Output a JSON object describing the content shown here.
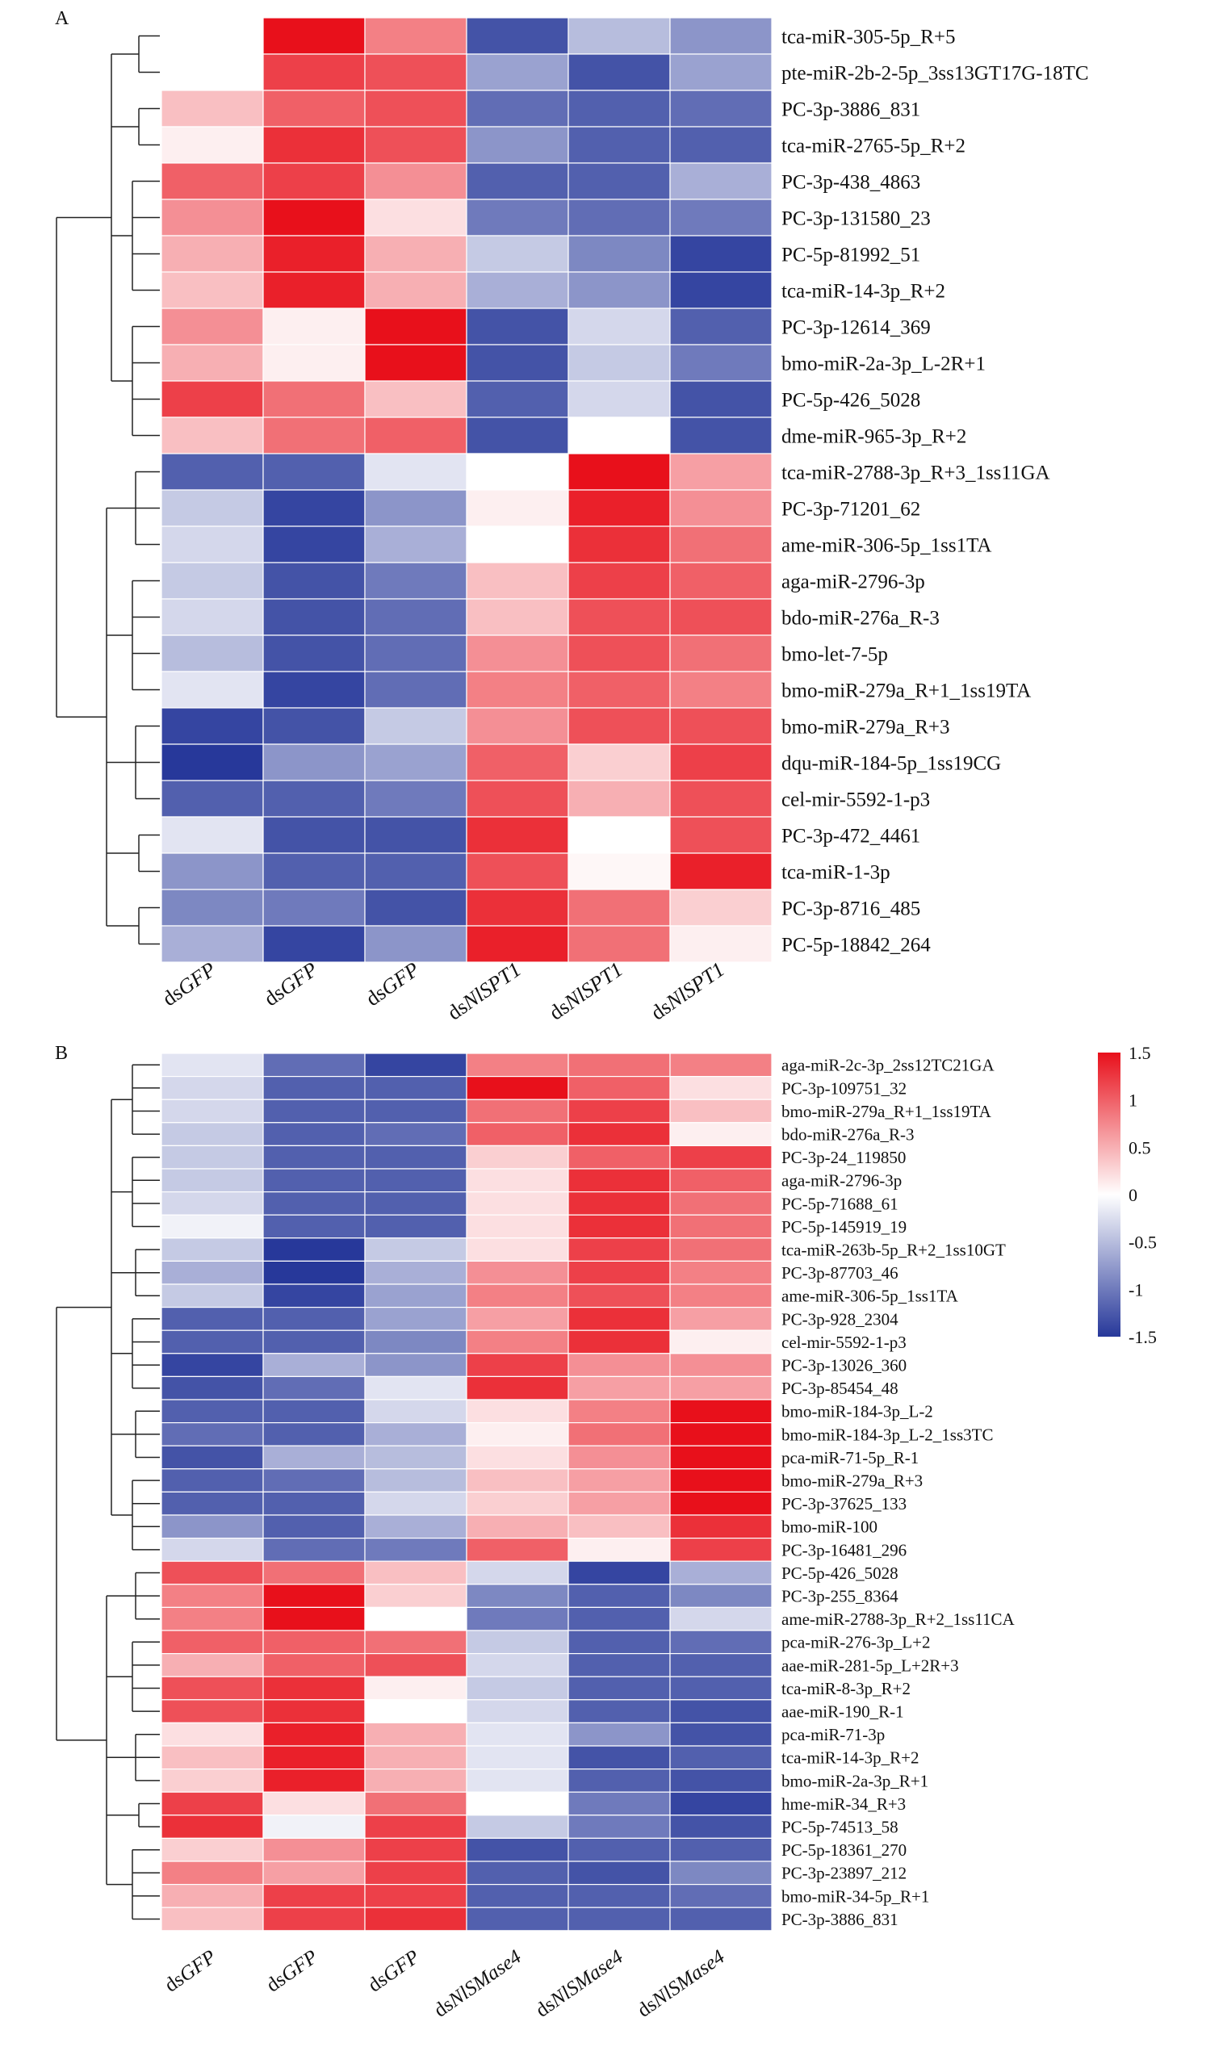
{
  "panels": [
    {
      "label": "A",
      "columns": [
        {
          "prefix": "ds",
          "gene": "GFP"
        },
        {
          "prefix": "ds",
          "gene": "GFP"
        },
        {
          "prefix": "ds",
          "gene": "GFP"
        },
        {
          "prefix": "ds",
          "gene": "NlSPT1"
        },
        {
          "prefix": "ds",
          "gene": "NlSPT1"
        },
        {
          "prefix": "ds",
          "gene": "NlSPT1"
        }
      ],
      "rows": [
        "tca-miR-305-5p_R+5",
        "pte-miR-2b-2-5p_3ss13GT17G-18TC",
        "PC-3p-3886_831",
        "tca-miR-2765-5p_R+2",
        "PC-3p-438_4863",
        "PC-3p-131580_23",
        "PC-5p-81992_51",
        "tca-miR-14-3p_R+2",
        "PC-3p-12614_369",
        "bmo-miR-2a-3p_L-2R+1",
        "PC-5p-426_5028",
        "dme-miR-965-3p_R+2",
        "tca-miR-2788-3p_R+3_1ss11GA",
        "PC-3p-71201_62",
        "ame-miR-306-5p_1ss1TA",
        "aga-miR-2796-3p",
        "bdo-miR-276a_R-3",
        "bmo-let-7-5p",
        "bmo-miR-279a_R+1_1ss19TA",
        "bmo-miR-279a_R+3",
        "dqu-miR-184-5p_1ss19CG",
        "cel-mir-5592-1-p3",
        "PC-3p-472_4461",
        "tca-miR-1-3p",
        "PC-3p-8716_485",
        "PC-5p-18842_264"
      ]
    },
    {
      "label": "B",
      "columns": [
        {
          "prefix": "ds",
          "gene": "GFP"
        },
        {
          "prefix": "ds",
          "gene": "GFP"
        },
        {
          "prefix": "ds",
          "gene": "GFP"
        },
        {
          "prefix": "ds",
          "gene": "NlSMase4"
        },
        {
          "prefix": "ds",
          "gene": "NlSMase4"
        },
        {
          "prefix": "ds",
          "gene": "NlSMase4"
        }
      ],
      "rows": [
        "aga-miR-2c-3p_2ss12TC21GA",
        "PC-3p-109751_32",
        "bmo-miR-279a_R+1_1ss19TA",
        "bdo-miR-276a_R-3",
        "PC-3p-24_119850",
        "aga-miR-2796-3p",
        "PC-5p-71688_61",
        "PC-5p-145919_19",
        "tca-miR-263b-5p_R+2_1ss10GT",
        "PC-3p-87703_46",
        "ame-miR-306-5p_1ss1TA",
        "PC-3p-928_2304",
        "cel-mir-5592-1-p3",
        "PC-3p-13026_360",
        "PC-3p-85454_48",
        "bmo-miR-184-3p_L-2",
        "bmo-miR-184-3p_L-2_1ss3TC",
        "pca-miR-71-5p_R-1",
        "bmo-miR-279a_R+3",
        "PC-3p-37625_133",
        "bmo-miR-100",
        "PC-3p-16481_296",
        "PC-5p-426_5028",
        "PC-3p-255_8364",
        "ame-miR-2788-3p_R+2_1ss11CA",
        "pca-miR-276-3p_L+2",
        "aae-miR-281-5p_L+2R+3",
        "tca-miR-8-3p_R+2",
        "aae-miR-190_R-1",
        "pca-miR-71-3p",
        "tca-miR-14-3p_R+2",
        "bmo-miR-2a-3p_R+1",
        "hme-miR-34_R+3",
        "PC-5p-74513_58",
        "PC-5p-18361_270",
        "PC-3p-23897_212",
        "bmo-miR-34-5p_R+1",
        "PC-3p-3886_831"
      ]
    }
  ],
  "legend": {
    "ticks": [
      "1.5",
      "1",
      "0.5",
      "0",
      "-0.5",
      "-1",
      "-1.5"
    ],
    "high_color": "#e8101b",
    "mid_color": "#ffffff",
    "low_color": "#27389a"
  },
  "chart_data": [
    {
      "type": "heatmap",
      "panel": "A",
      "columns": [
        "dsGFP",
        "dsGFP",
        "dsGFP",
        "dsNlSPT1",
        "dsNlSPT1",
        "dsNlSPT1"
      ],
      "rows": [
        "tca-miR-305-5p_R+5",
        "pte-miR-2b-2-5p_3ss13GT17G-18TC",
        "PC-3p-3886_831",
        "tca-miR-2765-5p_R+2",
        "PC-3p-438_4863",
        "PC-3p-131580_23",
        "PC-5p-81992_51",
        "tca-miR-14-3p_R+2",
        "PC-3p-12614_369",
        "bmo-miR-2a-3p_L-2R+1",
        "PC-5p-426_5028",
        "dme-miR-965-3p_R+2",
        "tca-miR-2788-3p_R+3_1ss11GA",
        "PC-3p-71201_62",
        "ame-miR-306-5p_1ss1TA",
        "aga-miR-2796-3p",
        "bdo-miR-276a_R-3",
        "bmo-let-7-5p",
        "bmo-miR-279a_R+1_1ss19TA",
        "bmo-miR-279a_R+3",
        "dqu-miR-184-5p_1ss19CG",
        "cel-mir-5592-1-p3",
        "PC-3p-472_4461",
        "tca-miR-1-3p",
        "PC-3p-8716_485",
        "PC-5p-18842_264"
      ],
      "scale_range": [
        -1.5,
        1.5
      ],
      "values": [
        [
          0.0,
          1.5,
          0.8,
          -1.3,
          -0.5,
          -0.8
        ],
        [
          0.0,
          1.2,
          1.1,
          -0.7,
          -1.3,
          -0.7
        ],
        [
          0.4,
          1.0,
          1.1,
          -1.1,
          -1.2,
          -1.1
        ],
        [
          0.1,
          1.3,
          1.1,
          -0.8,
          -1.2,
          -1.2
        ],
        [
          1.0,
          1.2,
          0.7,
          -1.2,
          -1.2,
          -0.6
        ],
        [
          0.7,
          1.5,
          0.2,
          -1.0,
          -1.1,
          -1.0
        ],
        [
          0.5,
          1.4,
          0.5,
          -0.4,
          -0.9,
          -1.4
        ],
        [
          0.4,
          1.4,
          0.5,
          -0.6,
          -0.8,
          -1.4
        ],
        [
          0.7,
          0.1,
          1.5,
          -1.3,
          -0.3,
          -1.2
        ],
        [
          0.5,
          0.1,
          1.5,
          -1.3,
          -0.4,
          -1.0
        ],
        [
          1.2,
          0.9,
          0.4,
          -1.2,
          -0.3,
          -1.3
        ],
        [
          0.4,
          0.9,
          1.0,
          -1.3,
          0.0,
          -1.3
        ],
        [
          -1.2,
          -1.2,
          -0.2,
          0.0,
          1.5,
          0.6
        ],
        [
          -0.4,
          -1.4,
          -0.8,
          0.1,
          1.4,
          0.7
        ],
        [
          -0.3,
          -1.4,
          -0.6,
          0.0,
          1.3,
          0.9
        ],
        [
          -0.4,
          -1.3,
          -1.0,
          0.4,
          1.2,
          1.0
        ],
        [
          -0.3,
          -1.3,
          -1.1,
          0.4,
          1.1,
          1.1
        ],
        [
          -0.5,
          -1.3,
          -1.1,
          0.7,
          1.1,
          0.9
        ],
        [
          -0.2,
          -1.4,
          -1.1,
          0.8,
          1.0,
          0.8
        ],
        [
          -1.4,
          -1.3,
          -0.4,
          0.7,
          1.1,
          1.1
        ],
        [
          -1.5,
          -0.8,
          -0.7,
          1.0,
          0.3,
          1.2
        ],
        [
          -1.2,
          -1.2,
          -1.0,
          1.1,
          0.5,
          1.1
        ],
        [
          -0.2,
          -1.3,
          -1.3,
          1.3,
          0.0,
          1.1
        ],
        [
          -0.8,
          -1.2,
          -1.2,
          1.1,
          0.05,
          1.4
        ],
        [
          -0.9,
          -1.0,
          -1.3,
          1.3,
          0.9,
          0.3
        ],
        [
          -0.6,
          -1.4,
          -0.8,
          1.4,
          0.9,
          0.1
        ]
      ]
    },
    {
      "type": "heatmap",
      "panel": "B",
      "columns": [
        "dsGFP",
        "dsGFP",
        "dsGFP",
        "dsNlSMase4",
        "dsNlSMase4",
        "dsNlSMase4"
      ],
      "rows": [
        "aga-miR-2c-3p_2ss12TC21GA",
        "PC-3p-109751_32",
        "bmo-miR-279a_R+1_1ss19TA",
        "bdo-miR-276a_R-3",
        "PC-3p-24_119850",
        "aga-miR-2796-3p",
        "PC-5p-71688_61",
        "PC-5p-145919_19",
        "tca-miR-263b-5p_R+2_1ss10GT",
        "PC-3p-87703_46",
        "ame-miR-306-5p_1ss1TA",
        "PC-3p-928_2304",
        "cel-mir-5592-1-p3",
        "PC-3p-13026_360",
        "PC-3p-85454_48",
        "bmo-miR-184-3p_L-2",
        "bmo-miR-184-3p_L-2_1ss3TC",
        "pca-miR-71-5p_R-1",
        "bmo-miR-279a_R+3",
        "PC-3p-37625_133",
        "bmo-miR-100",
        "PC-3p-16481_296",
        "PC-5p-426_5028",
        "PC-3p-255_8364",
        "ame-miR-2788-3p_R+2_1ss11CA",
        "pca-miR-276-3p_L+2",
        "aae-miR-281-5p_L+2R+3",
        "tca-miR-8-3p_R+2",
        "aae-miR-190_R-1",
        "pca-miR-71-3p",
        "tca-miR-14-3p_R+2",
        "bmo-miR-2a-3p_R+1",
        "hme-miR-34_R+3",
        "PC-5p-74513_58",
        "PC-5p-18361_270",
        "PC-3p-23897_212",
        "bmo-miR-34-5p_R+1",
        "PC-3p-3886_831"
      ],
      "scale_range": [
        -1.5,
        1.5
      ],
      "values": [
        [
          -0.2,
          -1.1,
          -1.4,
          0.8,
          0.9,
          0.8
        ],
        [
          -0.3,
          -1.2,
          -1.2,
          1.5,
          1.0,
          0.2
        ],
        [
          -0.3,
          -1.2,
          -1.2,
          0.9,
          1.2,
          0.4
        ],
        [
          -0.4,
          -1.2,
          -1.1,
          1.0,
          1.3,
          0.1
        ],
        [
          -0.4,
          -1.2,
          -1.2,
          0.3,
          1.0,
          1.2
        ],
        [
          -0.4,
          -1.2,
          -1.2,
          0.2,
          1.3,
          1.0
        ],
        [
          -0.3,
          -1.2,
          -1.2,
          0.2,
          1.3,
          0.9
        ],
        [
          -0.1,
          -1.2,
          -1.2,
          0.2,
          1.3,
          0.9
        ],
        [
          -0.4,
          -1.5,
          -0.4,
          0.2,
          1.2,
          0.9
        ],
        [
          -0.6,
          -1.5,
          -0.6,
          0.7,
          1.2,
          0.8
        ],
        [
          -0.4,
          -1.4,
          -0.7,
          0.8,
          1.1,
          0.8
        ],
        [
          -1.2,
          -1.2,
          -0.7,
          0.6,
          1.3,
          0.6
        ],
        [
          -1.2,
          -1.2,
          -0.9,
          0.8,
          1.3,
          0.1
        ],
        [
          -1.4,
          -0.6,
          -0.8,
          1.2,
          0.7,
          0.7
        ],
        [
          -1.3,
          -1.1,
          -0.2,
          1.3,
          0.6,
          0.6
        ],
        [
          -1.2,
          -1.2,
          -0.3,
          0.2,
          0.8,
          1.5
        ],
        [
          -1.1,
          -1.2,
          -0.6,
          0.1,
          0.9,
          1.5
        ],
        [
          -1.3,
          -0.6,
          -0.5,
          0.2,
          0.7,
          1.5
        ],
        [
          -1.2,
          -1.1,
          -0.5,
          0.4,
          0.6,
          1.5
        ],
        [
          -1.2,
          -1.2,
          -0.3,
          0.3,
          0.6,
          1.5
        ],
        [
          -0.8,
          -1.2,
          -0.6,
          0.5,
          0.4,
          1.3
        ],
        [
          -0.3,
          -1.1,
          -1.0,
          1.0,
          0.1,
          1.2
        ],
        [
          1.1,
          0.9,
          0.4,
          -0.3,
          -1.4,
          -0.6
        ],
        [
          0.8,
          1.5,
          0.3,
          -0.9,
          -1.2,
          -0.9
        ],
        [
          0.8,
          1.5,
          0.0,
          -1.0,
          -1.2,
          -0.3
        ],
        [
          1.0,
          1.0,
          0.9,
          -0.4,
          -1.2,
          -1.1
        ],
        [
          0.5,
          1.0,
          1.1,
          -0.3,
          -1.2,
          -1.2
        ],
        [
          1.1,
          1.3,
          0.1,
          -0.4,
          -1.2,
          -1.2
        ],
        [
          1.1,
          1.3,
          0.0,
          -0.3,
          -1.2,
          -1.3
        ],
        [
          0.2,
          1.4,
          0.5,
          -0.2,
          -0.8,
          -1.3
        ],
        [
          0.4,
          1.4,
          0.5,
          -0.2,
          -1.3,
          -1.2
        ],
        [
          0.3,
          1.4,
          0.5,
          -0.2,
          -1.2,
          -1.3
        ],
        [
          1.2,
          0.2,
          0.9,
          0.0,
          -1.0,
          -1.4
        ],
        [
          1.3,
          -0.1,
          1.2,
          -0.4,
          -1.0,
          -1.3
        ],
        [
          0.3,
          0.7,
          1.2,
          -1.3,
          -1.2,
          -1.2
        ],
        [
          0.8,
          0.6,
          1.2,
          -1.2,
          -1.3,
          -0.9
        ],
        [
          0.5,
          1.2,
          1.2,
          -1.2,
          -1.2,
          -1.1
        ],
        [
          0.4,
          1.2,
          1.3,
          -1.2,
          -1.2,
          -1.2
        ]
      ]
    }
  ]
}
